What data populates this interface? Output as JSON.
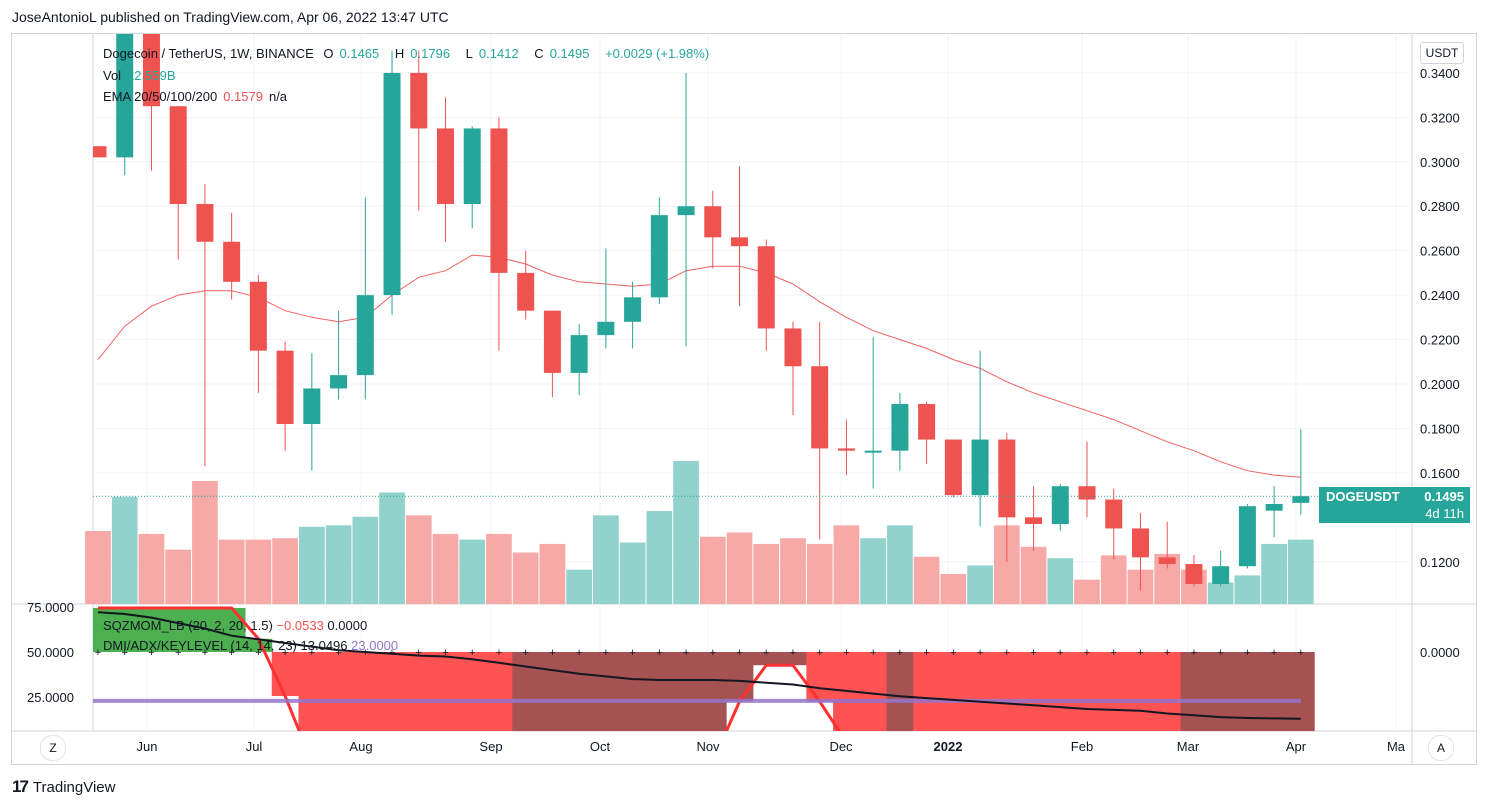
{
  "header": {
    "published": "JoseAntonioL published on TradingView.com, Apr 06, 2022 13:47 UTC"
  },
  "legend": {
    "symbol": "Dogecoin / TetherUS, 1W, BINANCE",
    "o_label": "O",
    "o": "0.1465",
    "h_label": "H",
    "h": "0.1796",
    "l_label": "L",
    "l": "0.1412",
    "c_label": "C",
    "c": "0.1495",
    "change": "+0.0029 (+1.98%)",
    "vol_label": "Vol",
    "vol": "12.559B",
    "ema_label": "EMA 20/50/100/200",
    "ema_value": "0.1579",
    "ema_na": "n/a"
  },
  "indicators": {
    "sqz_label": "SQZMOM_LB (20, 2, 20, 1.5)",
    "sqz_v1": "−0.0533",
    "sqz_v2": "0.0000",
    "dmi_label": "DMI/ADX/KEYLEVEL (14, 14, 23)",
    "dmi_v1": "13.0496",
    "dmi_v2": "23.0000"
  },
  "currency_button": "USDT",
  "price_tag": {
    "symbol": "DOGEUSDT",
    "price": "0.1495",
    "countdown": "4d 11h"
  },
  "footer": {
    "logo": "17",
    "brand": "TradingView"
  },
  "buttons": {
    "z": "Z",
    "a": "A"
  },
  "colors": {
    "up": "#26a69a",
    "down": "#ef5350",
    "ema": "#f06060",
    "grid": "#f0f3fa",
    "purple": "#9575cd"
  },
  "chart_data": {
    "type": "candlestick",
    "interval": "1W",
    "price_axis": {
      "ylim": [
        0.1,
        0.35
      ],
      "ticks": [
        "0.3400",
        "0.3200",
        "0.3000",
        "0.2800",
        "0.2600",
        "0.2400",
        "0.2200",
        "0.2000",
        "0.1800",
        "0.1600",
        "0.1200"
      ]
    },
    "x_labels": [
      "Jun",
      "Jul",
      "Aug",
      "Sep",
      "Oct",
      "Nov",
      "Dec",
      "2022",
      "Feb",
      "Mar",
      "Apr",
      "Ma"
    ],
    "candles": [
      {
        "o": 0.307,
        "h": 0.307,
        "l": 0.302,
        "c": 0.302
      },
      {
        "o": 0.302,
        "h": 0.42,
        "l": 0.294,
        "c": 0.4
      },
      {
        "o": 0.4,
        "h": 0.4,
        "l": 0.296,
        "c": 0.325
      },
      {
        "o": 0.325,
        "h": 0.325,
        "l": 0.256,
        "c": 0.281
      },
      {
        "o": 0.281,
        "h": 0.29,
        "l": 0.163,
        "c": 0.264
      },
      {
        "o": 0.264,
        "h": 0.277,
        "l": 0.238,
        "c": 0.246
      },
      {
        "o": 0.246,
        "h": 0.249,
        "l": 0.196,
        "c": 0.215
      },
      {
        "o": 0.215,
        "h": 0.219,
        "l": 0.17,
        "c": 0.182
      },
      {
        "o": 0.182,
        "h": 0.214,
        "l": 0.161,
        "c": 0.198
      },
      {
        "o": 0.198,
        "h": 0.233,
        "l": 0.193,
        "c": 0.204
      },
      {
        "o": 0.204,
        "h": 0.284,
        "l": 0.193,
        "c": 0.24
      },
      {
        "o": 0.24,
        "h": 0.35,
        "l": 0.231,
        "c": 0.34
      },
      {
        "o": 0.34,
        "h": 0.35,
        "l": 0.278,
        "c": 0.315
      },
      {
        "o": 0.315,
        "h": 0.329,
        "l": 0.264,
        "c": 0.281
      },
      {
        "o": 0.281,
        "h": 0.316,
        "l": 0.27,
        "c": 0.315
      },
      {
        "o": 0.315,
        "h": 0.32,
        "l": 0.215,
        "c": 0.25
      },
      {
        "o": 0.25,
        "h": 0.26,
        "l": 0.229,
        "c": 0.233
      },
      {
        "o": 0.233,
        "h": 0.233,
        "l": 0.194,
        "c": 0.205
      },
      {
        "o": 0.205,
        "h": 0.227,
        "l": 0.195,
        "c": 0.222
      },
      {
        "o": 0.222,
        "h": 0.261,
        "l": 0.216,
        "c": 0.228
      },
      {
        "o": 0.228,
        "h": 0.246,
        "l": 0.216,
        "c": 0.239
      },
      {
        "o": 0.239,
        "h": 0.284,
        "l": 0.236,
        "c": 0.276
      },
      {
        "o": 0.276,
        "h": 0.34,
        "l": 0.217,
        "c": 0.28
      },
      {
        "o": 0.28,
        "h": 0.287,
        "l": 0.252,
        "c": 0.266
      },
      {
        "o": 0.266,
        "h": 0.298,
        "l": 0.235,
        "c": 0.262
      },
      {
        "o": 0.262,
        "h": 0.265,
        "l": 0.215,
        "c": 0.225
      },
      {
        "o": 0.225,
        "h": 0.228,
        "l": 0.186,
        "c": 0.208
      },
      {
        "o": 0.208,
        "h": 0.228,
        "l": 0.13,
        "c": 0.171
      },
      {
        "o": 0.171,
        "h": 0.184,
        "l": 0.159,
        "c": 0.17
      },
      {
        "o": 0.17,
        "h": 0.221,
        "l": 0.153,
        "c": 0.17
      },
      {
        "o": 0.17,
        "h": 0.196,
        "l": 0.161,
        "c": 0.191
      },
      {
        "o": 0.191,
        "h": 0.192,
        "l": 0.164,
        "c": 0.175
      },
      {
        "o": 0.175,
        "h": 0.175,
        "l": 0.149,
        "c": 0.15
      },
      {
        "o": 0.15,
        "h": 0.215,
        "l": 0.136,
        "c": 0.175
      },
      {
        "o": 0.175,
        "h": 0.178,
        "l": 0.12,
        "c": 0.14
      },
      {
        "o": 0.14,
        "h": 0.154,
        "l": 0.125,
        "c": 0.137
      },
      {
        "o": 0.137,
        "h": 0.155,
        "l": 0.134,
        "c": 0.154
      },
      {
        "o": 0.154,
        "h": 0.174,
        "l": 0.14,
        "c": 0.148
      },
      {
        "o": 0.148,
        "h": 0.153,
        "l": 0.121,
        "c": 0.135
      },
      {
        "o": 0.135,
        "h": 0.142,
        "l": 0.107,
        "c": 0.122
      },
      {
        "o": 0.122,
        "h": 0.138,
        "l": 0.117,
        "c": 0.119
      },
      {
        "o": 0.119,
        "h": 0.123,
        "l": 0.109,
        "c": 0.11
      },
      {
        "o": 0.11,
        "h": 0.125,
        "l": 0.109,
        "c": 0.118
      },
      {
        "o": 0.118,
        "h": 0.146,
        "l": 0.117,
        "c": 0.145
      },
      {
        "o": 0.143,
        "h": 0.154,
        "l": 0.131,
        "c": 0.146
      },
      {
        "o": 0.1465,
        "h": 0.1796,
        "l": 0.1412,
        "c": 0.1495
      }
    ],
    "ema20": [
      0.211,
      0.226,
      0.235,
      0.24,
      0.242,
      0.242,
      0.239,
      0.233,
      0.23,
      0.228,
      0.23,
      0.24,
      0.248,
      0.251,
      0.258,
      0.257,
      0.254,
      0.249,
      0.246,
      0.245,
      0.244,
      0.245,
      0.251,
      0.253,
      0.253,
      0.25,
      0.245,
      0.237,
      0.23,
      0.224,
      0.22,
      0.216,
      0.211,
      0.207,
      0.201,
      0.196,
      0.192,
      0.188,
      0.184,
      0.179,
      0.174,
      0.17,
      0.165,
      0.161,
      0.159,
      0.158
    ],
    "volume_relative": [
      0.51,
      0.75,
      0.49,
      0.38,
      0.86,
      0.45,
      0.45,
      0.46,
      0.54,
      0.55,
      0.61,
      0.78,
      0.62,
      0.49,
      0.45,
      0.49,
      0.36,
      0.42,
      0.24,
      0.62,
      0.43,
      0.65,
      1.0,
      0.47,
      0.5,
      0.42,
      0.46,
      0.42,
      0.55,
      0.46,
      0.55,
      0.33,
      0.21,
      0.27,
      0.55,
      0.4,
      0.32,
      0.17,
      0.34,
      0.24,
      0.35,
      0.24,
      0.15,
      0.2,
      0.42,
      0.45
    ],
    "indicator_axis": {
      "left_ticks": [
        "75.0000",
        "50.0000",
        "25.0000"
      ],
      "right_ticks": [
        "0.0000"
      ]
    },
    "sqz_momentum": [
      0.4,
      0.4,
      0.4,
      0.4,
      0.4,
      0.4,
      0.12,
      -0.4,
      -1.0,
      -1.0,
      -1.0,
      -1.0,
      -1.0,
      -1.0,
      -1.0,
      -1.0,
      -1.0,
      -1.0,
      -1.0,
      -1.0,
      -1.0,
      -1.0,
      -1.0,
      -1.0,
      -0.45,
      -0.12,
      -0.12,
      -0.45,
      -0.82,
      -1.0,
      -1.0,
      -1.0,
      -1.0,
      -1.0,
      -1.0,
      -1.0,
      -1.0,
      -1.0,
      -1.0,
      -1.0,
      -1.0,
      -1.0,
      -1.0,
      -1.0,
      -1.0,
      -1.0
    ],
    "adx": [
      72.0,
      71.0,
      69.0,
      66.0,
      63.0,
      59.0,
      57.0,
      55.0,
      53.0,
      51.0,
      50.0,
      49.0,
      48.0,
      47.5,
      46.0,
      44.0,
      42.0,
      40.0,
      38.0,
      36.5,
      35.0,
      34.5,
      34.5,
      34.5,
      34.0,
      33.0,
      32.0,
      30.0,
      28.5,
      27.0,
      25.5,
      24.5,
      23.5,
      22.5,
      21.5,
      20.5,
      19.5,
      18.5,
      18.0,
      17.5,
      16.0,
      15.0,
      14.0,
      13.5,
      13.3,
      13.05
    ],
    "key_level": 23.0
  }
}
